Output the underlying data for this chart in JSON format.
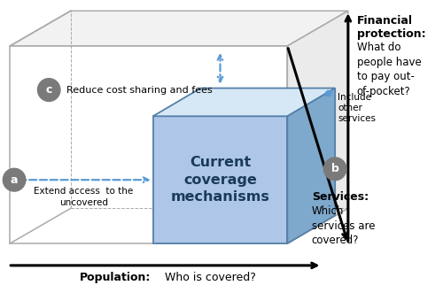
{
  "bg_color": "#ffffff",
  "cube_front_color": "#aec6e8",
  "cube_top_color": "#d6e8f5",
  "cube_right_color": "#7ea8cc",
  "big_cube_edge": "#aaaaaa",
  "big_cube_face_top": "#f5f5f5",
  "big_cube_face_right": "#ececec",
  "inner_edge": "#5580a8",
  "text_current": "Current\ncoverage\nmechanisms",
  "text_extend": "Extend access  to the\nuncovered",
  "text_include": "Include\nother\nservices",
  "text_reduce": "Reduce cost sharing and fees",
  "text_population_bold": "Population:",
  "text_population_normal": " Who is covered?",
  "text_services_bold": "Services:",
  "text_services_normal": "Which\nservices are\ncovered?",
  "text_financial_bold": "Financial\nprotection:",
  "text_financial_normal": "What do\npeople have\nto pay out-\nof-pocket?",
  "arrow_blue": "#5b9bd5",
  "badge_color": "#7a7a7a",
  "label_a": "a",
  "label_b": "b",
  "label_c": "c"
}
